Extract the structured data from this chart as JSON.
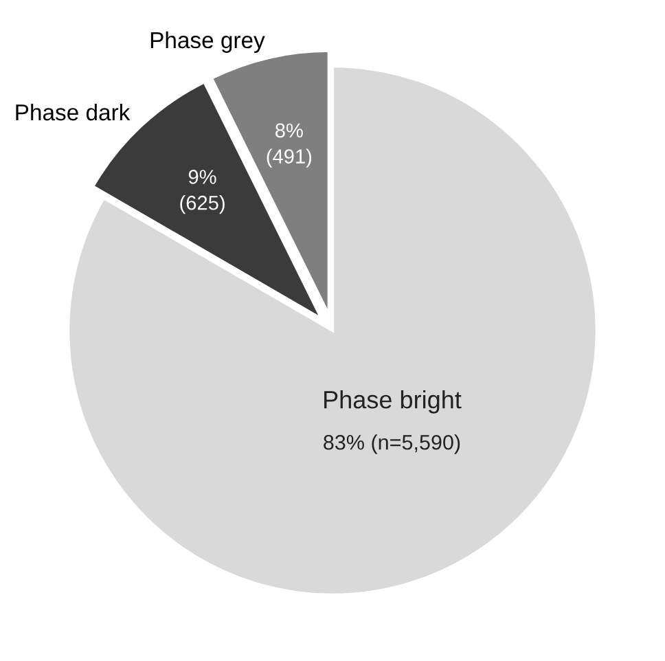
{
  "chart_data": {
    "type": "pie",
    "categories": [
      "Phase bright",
      "Phase dark",
      "Phase grey"
    ],
    "values": [
      5590,
      625,
      491
    ],
    "colors": [
      "#d9d9d9",
      "#3b3b3b",
      "#7f7f7f"
    ],
    "value_labels": [
      "83% (n=5,590)",
      "9%\n(625)",
      "8%\n(491)"
    ]
  }
}
